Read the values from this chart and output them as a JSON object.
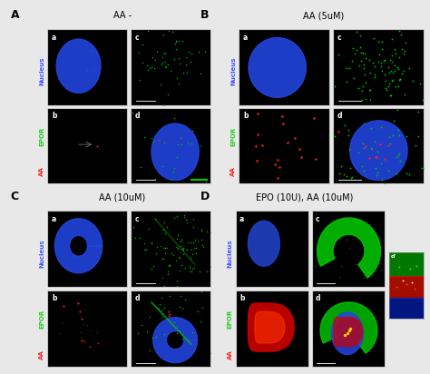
{
  "panels": [
    {
      "label": "A",
      "title": "AA -",
      "row": 0,
      "col": 0
    },
    {
      "label": "B",
      "title": "AA (5uM)",
      "row": 0,
      "col": 1
    },
    {
      "label": "C",
      "title": "AA (10uM)",
      "row": 1,
      "col": 0
    },
    {
      "label": "D",
      "title": "EPO (10U), AA (10uM)",
      "row": 1,
      "col": 1
    }
  ],
  "y_label_parts": [
    {
      "text": "Nucleus",
      "color": "#4455ff"
    },
    {
      "text": "EPOR",
      "color": "#22cc22"
    },
    {
      "text": "AA",
      "color": "#ff2222"
    }
  ],
  "outer_bg": "#e8e8e8",
  "panel_bg": "#000000",
  "panel_label_color": "#000000",
  "title_color": "#000000",
  "sub_label_color": "#ffffff",
  "title_fontsize": 7,
  "panel_label_fontsize": 9,
  "sub_label_fontsize": 5.5,
  "ylabel_fontsize": 5.0
}
